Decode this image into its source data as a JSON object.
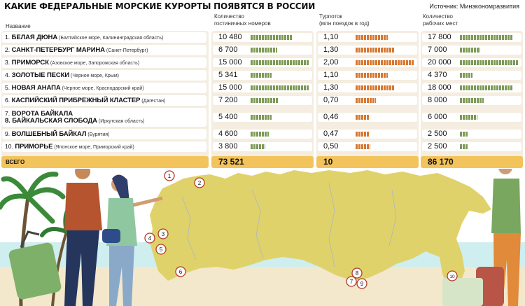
{
  "title": "КАКИЕ ФЕДЕРАЛЬНЫЕ МОРСКИЕ КУРОРТЫ ПОЯВЯТСЯ В РОССИИ",
  "source": "Источник: Минэкономразвития",
  "headers": {
    "name": "Название",
    "rooms": "Количество\nгостиничных номеров",
    "tourflow": "Турпоток\n(млн поездок в год)",
    "jobs": "Количество\nрабочих мест"
  },
  "colors": {
    "panel": "#f4ede0",
    "rooms_bar": "#7d9a56",
    "tourflow_bar": "#d9772f",
    "jobs_bar": "#7d9a56",
    "total": "#f3c35c",
    "land": "#e0d26a",
    "sea": "#bfe3e8"
  },
  "chart_data": {
    "type": "table",
    "columns": [
      "Название",
      "Количество гостиничных номеров",
      "Турпоток (млн поездок в год)",
      "Количество рабочих мест"
    ],
    "rows": [
      {
        "num": "1.",
        "name": "БЕЛАЯ ДЮНА",
        "region": "(Балтийское море, Калининградская область)",
        "name2": "",
        "region2": "",
        "rooms": "10 480",
        "rooms_value": 10480,
        "tourflow": "1,10",
        "tourflow_value": 1.1,
        "jobs": "17 800",
        "jobs_value": 17800
      },
      {
        "num": "2.",
        "name": "САНКТ-ПЕТЕРБУРГ МАРИНА",
        "region": "(Санкт-Петербург)",
        "name2": "",
        "region2": "",
        "rooms": "6 700",
        "rooms_value": 6700,
        "tourflow": "1,30",
        "tourflow_value": 1.3,
        "jobs": "7 000",
        "jobs_value": 7000
      },
      {
        "num": "3.",
        "name": "ПРИМОРСК",
        "region": "(Азовское море, Запорожская область)",
        "name2": "",
        "region2": "",
        "rooms": "15 000",
        "rooms_value": 15000,
        "tourflow": "2,00",
        "tourflow_value": 2.0,
        "jobs": "20 000",
        "jobs_value": 20000
      },
      {
        "num": "4.",
        "name": "ЗОЛОТЫЕ ПЕСКИ",
        "region": "(Черное море, Крым)",
        "name2": "",
        "region2": "",
        "rooms": "5 341",
        "rooms_value": 5341,
        "tourflow": "1,10",
        "tourflow_value": 1.1,
        "jobs": "4 370",
        "jobs_value": 4370
      },
      {
        "num": "5.",
        "name": "НОВАЯ АНАПА",
        "region": "(Черное море, Краснодарский край)",
        "name2": "",
        "region2": "",
        "rooms": "15 000",
        "rooms_value": 15000,
        "tourflow": "1,30",
        "tourflow_value": 1.3,
        "jobs": "18 000",
        "jobs_value": 18000
      },
      {
        "num": "6.",
        "name": "КАСПИЙСКИЙ ПРИБРЕЖНЫЙ КЛАСТЕР",
        "region": "(Дагестан)",
        "name2": "",
        "region2": "",
        "rooms": "7 200",
        "rooms_value": 7200,
        "tourflow": "0,70",
        "tourflow_value": 0.7,
        "jobs": "8 000",
        "jobs_value": 8000
      },
      {
        "num": "7.",
        "name": "ВОРОТА БАЙКАЛА",
        "region": "",
        "name2": "8. БАЙКАЛЬСКАЯ СЛОБОДА",
        "region2": "(Иркутская область)",
        "rooms": "5 400",
        "rooms_value": 5400,
        "tourflow": "0,46",
        "tourflow_value": 0.46,
        "jobs": "6 000",
        "jobs_value": 6000
      },
      {
        "num": "9.",
        "name": "ВОЛШЕБНЫЙ БАЙКАЛ",
        "region": "(Бурятия)",
        "name2": "",
        "region2": "",
        "rooms": "4 600",
        "rooms_value": 4600,
        "tourflow": "0,47",
        "tourflow_value": 0.47,
        "jobs": "2 500",
        "jobs_value": 2500
      },
      {
        "num": "10.",
        "name": "ПРИМОРЬЕ",
        "region": "(Японское море, Приморский край)",
        "name2": "",
        "region2": "",
        "rooms": "3 800",
        "rooms_value": 3800,
        "tourflow": "0,50",
        "tourflow_value": 0.5,
        "jobs": "2 500",
        "jobs_value": 2500
      }
    ],
    "totals": {
      "label": "ВСЕГО",
      "rooms": "73 521",
      "tourflow": "10",
      "jobs": "86 170"
    },
    "scale_max": {
      "rooms": 15000,
      "tourflow": 2.0,
      "jobs": 20000
    },
    "map_markers": [
      "1",
      "2",
      "3",
      "4",
      "5",
      "6",
      "7",
      "8",
      "9",
      "10"
    ]
  }
}
